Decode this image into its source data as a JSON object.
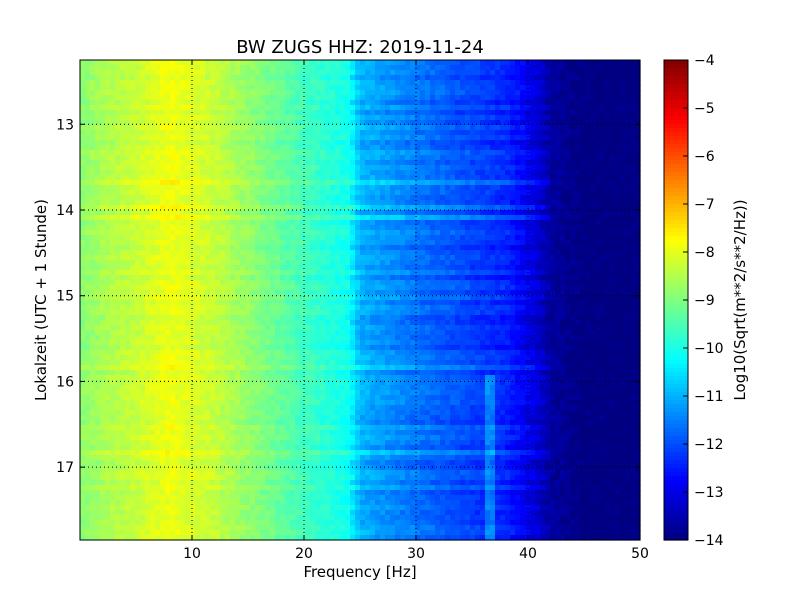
{
  "chart_data": {
    "type": "heatmap",
    "title": "BW ZUGS HHZ: 2019-11-24",
    "xlabel": "Frequency [Hz]",
    "ylabel": "Lokalzeit (UTC + 1 Stunde)",
    "xlim": [
      0,
      50
    ],
    "ylim_hours": [
      12.25,
      17.85
    ],
    "y_inverted": true,
    "grid": true,
    "x_ticks": [
      10,
      20,
      30,
      40,
      50
    ],
    "y_ticks": [
      13,
      14,
      15,
      16,
      17
    ],
    "colorbar": {
      "label": "Log10(Sqrt(m**2/s**2/Hz))",
      "range": [
        -14,
        -4
      ],
      "ticks": [
        -4,
        -5,
        -6,
        -7,
        -8,
        -9,
        -10,
        -11,
        -12,
        -13,
        -14
      ],
      "colormap": "jet"
    },
    "approx_profile": {
      "frequency_hz": [
        0,
        2,
        5,
        8,
        10,
        12,
        15,
        20,
        24,
        25,
        30,
        35,
        38,
        40,
        41,
        42,
        45,
        50
      ],
      "log10_psd": [
        -8.9,
        -8.6,
        -8.3,
        -7.9,
        -8.1,
        -8.3,
        -8.8,
        -9.6,
        -10.1,
        -11.0,
        -11.6,
        -12.1,
        -12.4,
        -12.9,
        -13.2,
        -13.7,
        -14.0,
        -14.0
      ]
    },
    "features": {
      "spectral_line_hz": 36.8,
      "spectral_line_hours": [
        15.9,
        17.85
      ],
      "quiet_cutoff_hz": 42
    }
  }
}
